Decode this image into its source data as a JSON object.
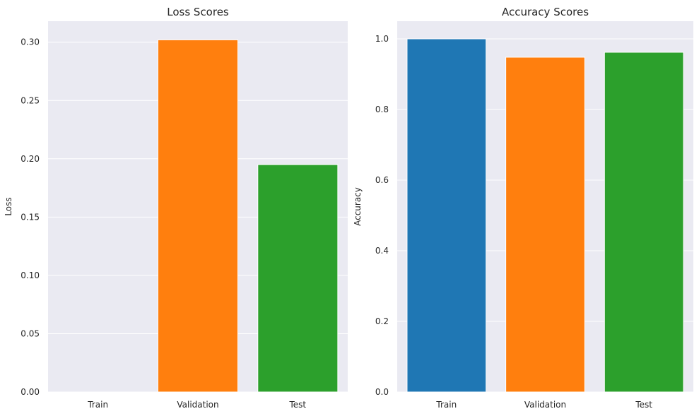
{
  "chart_data": [
    {
      "type": "bar",
      "title": "Loss Scores",
      "xlabel": "",
      "ylabel": "Loss",
      "categories": [
        "Train",
        "Validation",
        "Test"
      ],
      "values": [
        0.0,
        0.302,
        0.195
      ],
      "colors": [
        "#1f77b4",
        "#ff7f0e",
        "#2ca02c"
      ],
      "ylim": [
        0,
        0.318
      ],
      "yticks": [
        "0.00",
        "0.05",
        "0.10",
        "0.15",
        "0.20",
        "0.25",
        "0.30"
      ],
      "grid": true
    },
    {
      "type": "bar",
      "title": "Accuracy Scores",
      "xlabel": "",
      "ylabel": "Accuracy",
      "categories": [
        "Train",
        "Validation",
        "Test"
      ],
      "values": [
        1.0,
        0.948,
        0.962
      ],
      "colors": [
        "#1f77b4",
        "#ff7f0e",
        "#2ca02c"
      ],
      "ylim": [
        0,
        1.05
      ],
      "yticks": [
        "0.0",
        "0.2",
        "0.4",
        "0.6",
        "0.8",
        "1.0"
      ],
      "grid": true
    }
  ],
  "style": {
    "axes_background": "#eaeaf2",
    "grid_color": "#ffffff",
    "text_color": "#262626"
  }
}
